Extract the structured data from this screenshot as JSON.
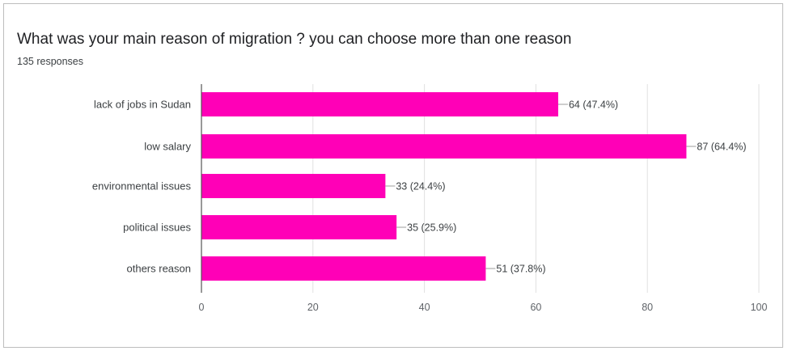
{
  "header": {
    "title": "What was your main reason of migration ? you can choose more than one reason",
    "responses": "135 responses"
  },
  "chart_data": {
    "type": "bar",
    "orientation": "horizontal",
    "categories": [
      "lack of jobs in Sudan",
      "low salary",
      "environmental issues",
      "political issues",
      "others reason"
    ],
    "values": [
      64,
      87,
      33,
      35,
      51
    ],
    "data_labels": [
      "64 (47.4%)",
      "87 (64.4%)",
      "33 (24.4%)",
      "35 (25.9%)",
      "51 (37.8%)"
    ],
    "xlim": [
      0,
      100
    ],
    "ticks": [
      0,
      20,
      40,
      60,
      80,
      100
    ],
    "tick_labels": [
      "0",
      "20",
      "40",
      "60",
      "80",
      "100"
    ],
    "grid": true,
    "bar_color": "#ff00b7",
    "grid_color": "#e0e0e0",
    "axis_color": "#555555"
  }
}
